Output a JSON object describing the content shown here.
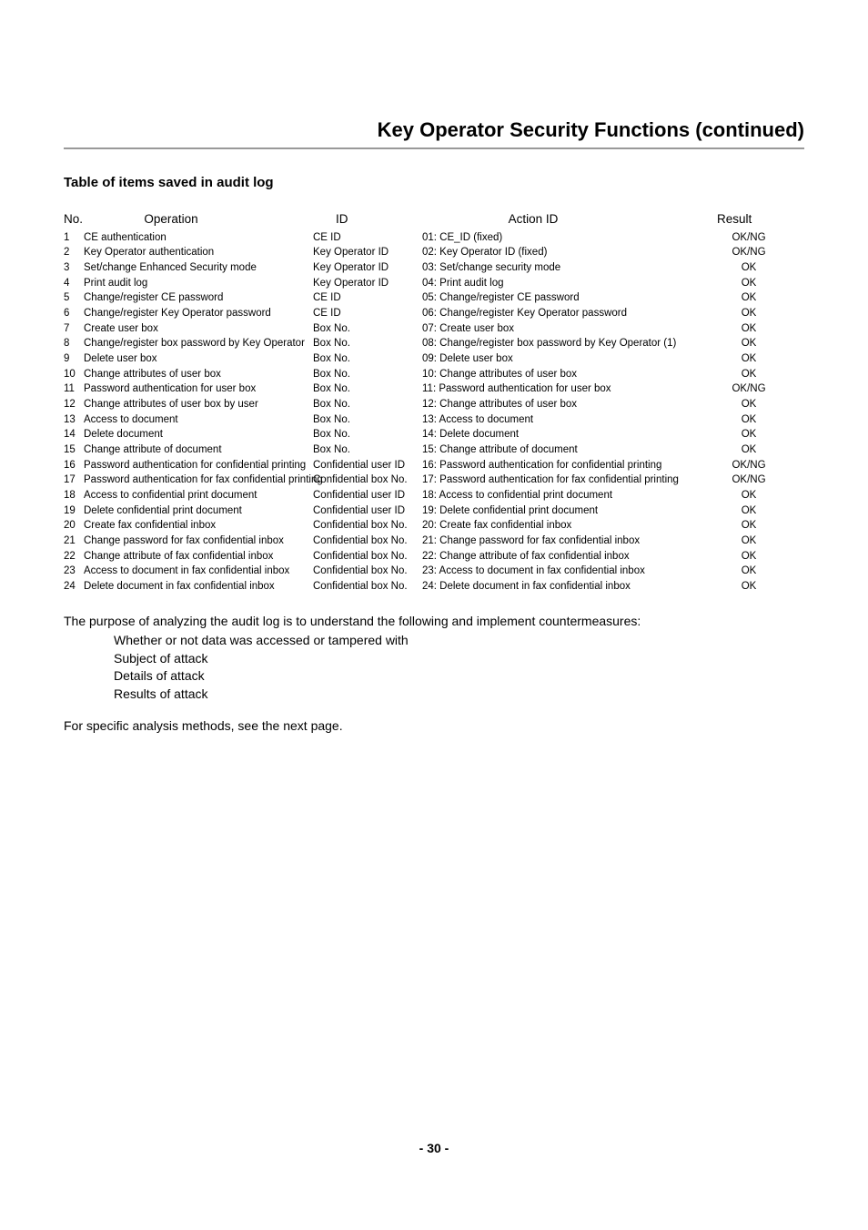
{
  "header": {
    "title": "Key Operator Security Functions (continued)"
  },
  "section": {
    "title": "Table of items saved in audit log"
  },
  "table": {
    "headers": {
      "no": "No.",
      "operation": "Operation",
      "id": "ID",
      "action": "Action ID",
      "result": "Result"
    },
    "rows": [
      {
        "no": "1",
        "operation": "CE authentication",
        "id": "CE ID",
        "action": "01: CE_ID (fixed)",
        "result": "OK/NG"
      },
      {
        "no": "2",
        "operation": "Key Operator authentication",
        "id": "Key Operator ID",
        "action": "02: Key Operator ID (fixed)",
        "result": "OK/NG"
      },
      {
        "no": "3",
        "operation": "Set/change Enhanced Security mode",
        "id": "Key Operator ID",
        "action": "03: Set/change security mode",
        "result": "OK"
      },
      {
        "no": "4",
        "operation": "Print audit log",
        "id": "Key Operator ID",
        "action": "04: Print audit log",
        "result": "OK"
      },
      {
        "no": "5",
        "operation": "Change/register CE password",
        "id": "CE ID",
        "action": "05: Change/register CE password",
        "result": "OK"
      },
      {
        "no": "6",
        "operation": "Change/register Key Operator password",
        "id": "CE ID",
        "action": "06: Change/register Key Operator password",
        "result": "OK"
      },
      {
        "no": "7",
        "operation": "Create user box",
        "id": "Box No.",
        "action": "07: Create user box",
        "result": "OK"
      },
      {
        "no": "8",
        "operation": "Change/register box password by Key Operator",
        "id": "Box No.",
        "action": "08: Change/register box password by Key Operator (1)",
        "result": "OK"
      },
      {
        "no": "9",
        "operation": "Delete user box",
        "id": "Box No.",
        "action": "09: Delete user box",
        "result": "OK"
      },
      {
        "no": "10",
        "operation": "Change attributes of user box",
        "id": "Box No.",
        "action": "10: Change attributes of user box",
        "result": "OK"
      },
      {
        "no": "11",
        "operation": "Password authentication for user box",
        "id": "Box No.",
        "action": "11: Password authentication for user box",
        "result": "OK/NG"
      },
      {
        "no": "12",
        "operation": "Change attributes of user box by user",
        "id": "Box No.",
        "action": "12: Change attributes of user box",
        "result": "OK"
      },
      {
        "no": "13",
        "operation": "Access to document",
        "id": "Box No.",
        "action": "13: Access to document",
        "result": "OK"
      },
      {
        "no": "14",
        "operation": "Delete document",
        "id": "Box No.",
        "action": "14: Delete document",
        "result": "OK"
      },
      {
        "no": "15",
        "operation": "Change attribute of document",
        "id": "Box No.",
        "action": "15: Change attribute of document",
        "result": "OK"
      },
      {
        "no": "16",
        "operation": "Password authentication for confidential printing",
        "id": "Confidential user ID",
        "action": "16: Password authentication for confidential printing",
        "result": "OK/NG"
      },
      {
        "no": "17",
        "operation": "Password authentication for fax confidential printing",
        "id": "Confidential box No.",
        "action": "17: Password authentication for fax confidential printing",
        "result": "OK/NG"
      },
      {
        "no": "18",
        "operation": "Access to confidential print document",
        "id": "Confidential user ID",
        "action": "18: Access to confidential print document",
        "result": "OK"
      },
      {
        "no": "19",
        "operation": "Delete confidential print document",
        "id": "Confidential user ID",
        "action": "19: Delete confidential print document",
        "result": "OK"
      },
      {
        "no": "20",
        "operation": "Create fax confidential inbox",
        "id": "Confidential box No.",
        "action": "20: Create fax confidential inbox",
        "result": "OK"
      },
      {
        "no": "21",
        "operation": "Change password for fax confidential inbox",
        "id": "Confidential  box No.",
        "action": "21: Change password for fax confidential inbox",
        "result": "OK"
      },
      {
        "no": "22",
        "operation": "Change attribute of fax confidential inbox",
        "id": "Confidential box No.",
        "action": "22: Change attribute of fax confidential inbox",
        "result": "OK"
      },
      {
        "no": "23",
        "operation": "Access to document in fax confidential inbox",
        "id": "Confidential box No.",
        "action": "23: Access to document in fax confidential inbox",
        "result": "OK"
      },
      {
        "no": "24",
        "operation": "Delete document in fax confidential inbox",
        "id": "Confidential box No.",
        "action": "24: Delete document in fax confidential inbox",
        "result": "OK"
      }
    ]
  },
  "purpose": {
    "intro": "The purpose of analyzing the audit log is to understand the following and implement countermeasures:",
    "items": [
      "Whether or not data was accessed or tampered with",
      "Subject of attack",
      "Details of attack",
      "Results of attack"
    ],
    "note": "For specific analysis methods, see the next page."
  },
  "footer": {
    "page": "- 30 -"
  }
}
